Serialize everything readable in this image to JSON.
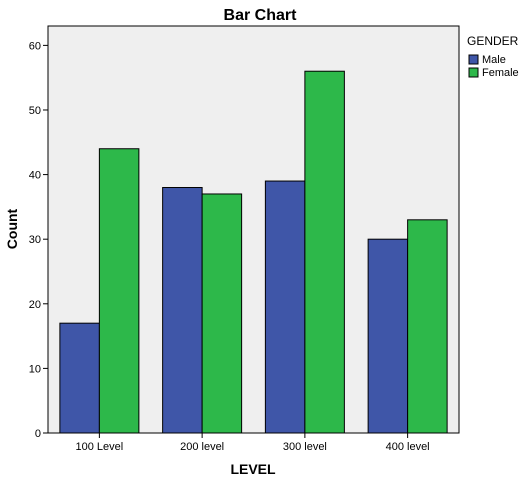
{
  "chart_data": {
    "type": "bar",
    "title": "Bar Chart",
    "xlabel": "LEVEL",
    "ylabel": "Count",
    "categories": [
      "100 Level",
      "200 level",
      "300 level",
      "400 level"
    ],
    "series": [
      {
        "name": "Male",
        "values": [
          17,
          38,
          39,
          30
        ],
        "color": "#3f56a8"
      },
      {
        "name": "Female",
        "values": [
          44,
          37,
          56,
          33
        ],
        "color": "#2db84a"
      }
    ],
    "ylim": [
      0,
      63
    ],
    "yticks": [
      0,
      10,
      20,
      30,
      40,
      50,
      60
    ],
    "grid": false,
    "legend": {
      "title": "GENDER",
      "placement": "right"
    },
    "colors": {
      "plot_background": "#efefef",
      "frame": "#000000"
    }
  }
}
